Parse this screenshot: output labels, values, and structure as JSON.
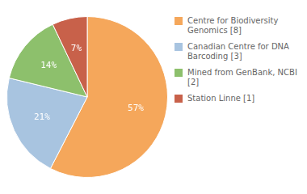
{
  "chart_data": {
    "type": "pie",
    "categories": [
      "Centre for Biodiversity\nGenomics [8]",
      "Canadian Centre for DNA\nBarcoding [3]",
      "Mined from GenBank, NCBI [2]",
      "Station Linne [1]"
    ],
    "values": [
      57,
      21,
      14,
      7
    ],
    "value_labels": [
      "57%",
      "21%",
      "14%",
      "7%"
    ],
    "colors": [
      "#F5A75B",
      "#A8C4E0",
      "#8DC06C",
      "#C8614A"
    ],
    "data_labels": true,
    "legend": "right"
  }
}
